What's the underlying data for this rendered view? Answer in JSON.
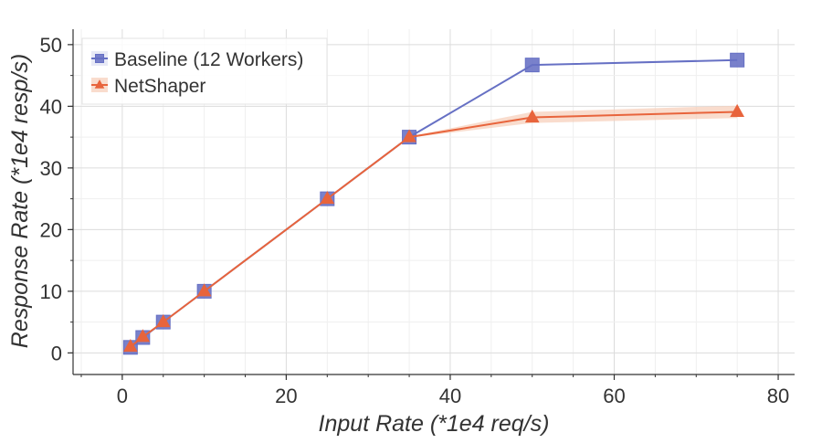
{
  "chart_data": {
    "type": "line",
    "title": "",
    "xlabel": "Input Rate (*1e4 req/s)",
    "ylabel": "Response Rate (*1e4 resp/s)",
    "xlim": [
      -6,
      82
    ],
    "ylim": [
      -3.5,
      52.5
    ],
    "xticks": [
      0,
      20,
      40,
      60,
      80
    ],
    "yticks": [
      0,
      10,
      20,
      30,
      40,
      50
    ],
    "grid": true,
    "legend_position": "top-left",
    "series": [
      {
        "name": "Baseline (12 Workers)",
        "marker": "square",
        "color": "#6670c4",
        "x": [
          1,
          2.5,
          5,
          10,
          25,
          35,
          50,
          75
        ],
        "y": [
          0.9,
          2.5,
          5,
          10,
          25,
          35,
          46.7,
          47.5
        ]
      },
      {
        "name": "NetShaper",
        "marker": "triangle",
        "color": "#e8643c",
        "band_color": "#f7cdb8",
        "x": [
          1,
          2.5,
          5,
          10,
          25,
          35,
          50,
          75
        ],
        "y": [
          1,
          2.6,
          5,
          10,
          25,
          35,
          38.2,
          39.1
        ],
        "y_lower": [
          0.9,
          2.5,
          4.9,
          9.9,
          24.9,
          34.9,
          37.3,
          38.1
        ],
        "y_upper": [
          1.1,
          2.7,
          5.1,
          10.1,
          25.1,
          35.1,
          39.1,
          40.1
        ]
      }
    ]
  }
}
